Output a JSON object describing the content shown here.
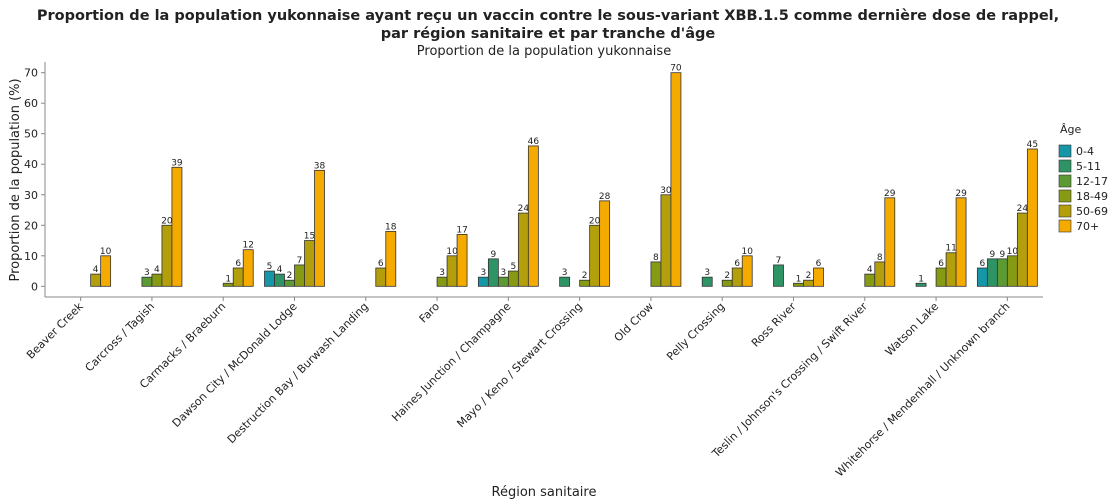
{
  "chart_data": {
    "type": "bar",
    "title": "Proportion de la population yukonnaise ayant reçu un vaccin contre le sous-variant XBB.1.5 comme dernière dose de rappel,",
    "title_line2": "par région sanitaire et par tranche d'âge",
    "subtitle": "Proportion de la population yukonnaise",
    "x_label": "Région sanitaire",
    "y_label": "Proportion de la population (%)",
    "legend_title": "Âge",
    "categories": [
      "Beaver Creek",
      "Carcross / Tagish",
      "Carmacks / Braeburn",
      "Dawson City / McDonald Lodge",
      "Destruction Bay / Burwash Landing",
      "Faro",
      "Haines Junction / Champagne",
      "Mayo / Keno / Stewart Crossing",
      "Old Crow",
      "Pelly Crossing",
      "Ross River",
      "Teslin / Johnson's Crossing / Swift River",
      "Watson Lake",
      "Whitehorse / Mendenhall / Unknown branch"
    ],
    "series": [
      {
        "name": "0-4",
        "color": "#1597a8",
        "values": [
          null,
          null,
          null,
          5,
          null,
          null,
          3,
          null,
          null,
          null,
          null,
          null,
          null,
          6
        ]
      },
      {
        "name": "5-11",
        "color": "#2e9466",
        "values": [
          null,
          null,
          null,
          4,
          null,
          null,
          9,
          3,
          null,
          3,
          7,
          null,
          1,
          9
        ]
      },
      {
        "name": "12-17",
        "color": "#5c9a33",
        "values": [
          null,
          3,
          null,
          2,
          null,
          null,
          3,
          null,
          null,
          null,
          null,
          null,
          null,
          9
        ]
      },
      {
        "name": "18-49",
        "color": "#879a14",
        "values": [
          null,
          4,
          1,
          7,
          null,
          3,
          5,
          2,
          8,
          2,
          1,
          4,
          6,
          10
        ]
      },
      {
        "name": "50-69",
        "color": "#b39e0c",
        "values": [
          4,
          20,
          6,
          15,
          6,
          10,
          24,
          20,
          30,
          6,
          2,
          8,
          11,
          24
        ]
      },
      {
        "name": "70+",
        "color": "#f5aa00",
        "values": [
          10,
          39,
          12,
          38,
          18,
          17,
          46,
          28,
          70,
          10,
          6,
          29,
          29,
          45
        ]
      }
    ],
    "ylim": [
      -3.5,
      73.5
    ],
    "yticks": [
      0,
      10,
      20,
      30,
      40,
      50,
      60,
      70
    ]
  }
}
